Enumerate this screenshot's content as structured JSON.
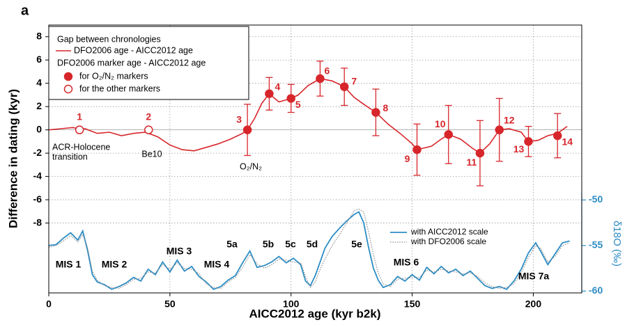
{
  "chart_data": {
    "type": "line",
    "panel_label": "a",
    "xlabel": "AICC2012 age (kyr b2k)",
    "ylabel": "Difference in dating (kyr)",
    "y2label": "δ18O (‰)",
    "xlim": [
      0,
      220
    ],
    "xticks": [
      0,
      50,
      100,
      150,
      200
    ],
    "ylim": [
      -14,
      9
    ],
    "yticks": [
      -8,
      -6,
      -4,
      -2,
      0,
      2,
      4,
      6,
      8
    ],
    "y2lim": [
      -60.2,
      -30.8
    ],
    "y2ticks": [
      -50,
      -55,
      -60
    ],
    "grid": true,
    "legend": "upper left",
    "legend_titles": [
      "Gap between chronologies",
      "DFO2006 marker age - AICC2012 age"
    ],
    "series": [
      {
        "name": "DFO2006 age - AICC2012 age",
        "color": "#d7262b",
        "x": [
          0,
          5,
          10,
          13,
          15,
          20,
          25,
          30,
          35,
          40,
          45,
          50,
          55,
          60,
          65,
          70,
          75,
          80,
          82,
          85,
          88,
          91,
          95,
          100,
          103,
          107,
          112,
          117,
          122,
          126,
          130,
          135,
          140,
          145,
          150,
          152,
          158,
          162,
          165,
          170,
          175,
          178,
          182,
          186,
          190,
          195,
          198,
          202,
          206,
          210,
          214
        ],
        "values": [
          0,
          0.1,
          0.2,
          0.05,
          0.1,
          -0.3,
          -0.2,
          -0.5,
          -0.3,
          -0.2,
          -0.6,
          -1.3,
          -1.7,
          -1.8,
          -1.5,
          -1.2,
          -0.8,
          -0.3,
          0,
          1.0,
          2.3,
          3.1,
          2.4,
          2.7,
          3.0,
          3.8,
          4.4,
          4.2,
          3.7,
          2.8,
          2.2,
          1.5,
          0.5,
          -0.3,
          -1.2,
          -1.7,
          -1.4,
          -0.8,
          -0.4,
          -0.8,
          -1.6,
          -2.0,
          -1.2,
          0,
          0.1,
          -0.2,
          -1.0,
          -0.9,
          -0.5,
          -0.3,
          0.3
        ]
      },
      {
        "name": "for O₂/N₂ markers",
        "color": "#d7262b",
        "marker": "filled",
        "x": [
          82,
          91,
          100,
          112,
          122,
          135,
          152,
          165,
          178,
          186,
          198,
          210
        ],
        "values": [
          0,
          3.1,
          2.7,
          4.4,
          3.7,
          1.5,
          -1.7,
          -0.4,
          -2.0,
          0,
          -1.0,
          -0.5
        ],
        "errors": [
          2.2,
          1.4,
          1.2,
          1.5,
          1.6,
          2.0,
          2.2,
          2.5,
          2.8,
          2.7,
          1.3,
          1.9
        ],
        "labels": [
          "3",
          "4",
          "5",
          "6",
          "7",
          "8",
          "9",
          "10",
          "11",
          "12",
          "13",
          "14"
        ]
      },
      {
        "name": "for the other markers",
        "color": "#d7262b",
        "marker": "open",
        "x": [
          12.7,
          41.2
        ],
        "values": [
          0,
          0
        ],
        "labels": [
          "1",
          "2"
        ]
      },
      {
        "name": "with AICC2012 scale",
        "color": "#2b8cc4",
        "axis": "y2",
        "x": [
          0,
          3,
          6,
          9,
          12,
          14,
          16,
          18,
          20,
          23,
          26,
          29,
          32,
          35,
          38,
          41,
          44,
          47,
          50,
          53,
          56,
          59,
          62,
          65,
          68,
          71,
          74,
          77,
          80,
          83,
          86,
          89,
          92,
          95,
          98,
          101,
          104,
          106,
          108,
          110,
          112,
          114,
          117,
          120,
          123,
          126,
          128,
          130,
          132,
          134,
          136,
          138,
          141,
          144,
          147,
          150,
          153,
          156,
          159,
          162,
          165,
          168,
          171,
          174,
          177,
          180,
          183,
          186,
          189,
          192,
          195,
          198,
          201,
          203,
          206,
          209,
          212,
          215
        ],
        "values": [
          -55,
          -54.9,
          -54.2,
          -53.6,
          -54.4,
          -53.4,
          -55.5,
          -58.2,
          -59,
          -59.3,
          -59.8,
          -59.5,
          -59.1,
          -58.5,
          -58.9,
          -57.6,
          -58.2,
          -56.8,
          -57.9,
          -56.6,
          -57.8,
          -57.3,
          -58.4,
          -59,
          -59.8,
          -59.5,
          -58.8,
          -58.3,
          -56.9,
          -55.6,
          -57.4,
          -57.2,
          -56.8,
          -56.2,
          -56.9,
          -56.4,
          -57.1,
          -58.9,
          -59.4,
          -58.3,
          -56.8,
          -55.3,
          -54,
          -53.1,
          -52.3,
          -51.6,
          -51.3,
          -52.5,
          -55.2,
          -57.5,
          -58.8,
          -59.6,
          -59.3,
          -58.4,
          -58.9,
          -58.2,
          -58.8,
          -57.4,
          -58.1,
          -57.3,
          -58,
          -57.6,
          -58.3,
          -57.8,
          -58.6,
          -59.4,
          -59.7,
          -59.5,
          -59.8,
          -58.9,
          -57.6,
          -55.8,
          -54.7,
          -55.6,
          -57.1,
          -55.9,
          -54.7,
          -54.5
        ]
      },
      {
        "name": "with DFO2006 scale",
        "color": "#8c8c8c",
        "axis": "y2",
        "dash": "dotted",
        "x": [
          0,
          3,
          6,
          9,
          12,
          14,
          16,
          18,
          20,
          23,
          26,
          29,
          32,
          35,
          38,
          41,
          44,
          47,
          50,
          53,
          56,
          59,
          62,
          65,
          68,
          71,
          74,
          77,
          80,
          83,
          86,
          89,
          92,
          95,
          98,
          101,
          104,
          106,
          108,
          110,
          112,
          114,
          117,
          120,
          123,
          126,
          128,
          130,
          132,
          134,
          136,
          138,
          141,
          144,
          147,
          150,
          153,
          156,
          159,
          162,
          165,
          168,
          171,
          174,
          177,
          180,
          183,
          186,
          189,
          192,
          195,
          198,
          201,
          203,
          206,
          209,
          212,
          215
        ],
        "values": [
          -55.2,
          -55,
          -54.5,
          -53.9,
          -54.6,
          -53.8,
          -55.2,
          -57.8,
          -58.8,
          -59.4,
          -59.6,
          -59.7,
          -59.3,
          -58.7,
          -58.6,
          -57.9,
          -58,
          -57.1,
          -57.6,
          -56.9,
          -57.5,
          -57.6,
          -58.1,
          -59.2,
          -59.6,
          -59.7,
          -59,
          -58.5,
          -57.4,
          -56,
          -57,
          -57.5,
          -57.1,
          -56.5,
          -56.6,
          -56.8,
          -56.9,
          -58.4,
          -59.6,
          -59,
          -57.6,
          -56.5,
          -55,
          -53.8,
          -52.5,
          -51.2,
          -51,
          -51.3,
          -53.5,
          -56,
          -58,
          -59.2,
          -59.5,
          -58.7,
          -58.6,
          -58.5,
          -58.5,
          -57.7,
          -57.9,
          -57.6,
          -57.8,
          -57.9,
          -58.1,
          -58,
          -58.4,
          -59.1,
          -59.5,
          -59.7,
          -59.6,
          -59.2,
          -58,
          -56.3,
          -55,
          -55.3,
          -56.8,
          -56.2,
          -55,
          -54.7
        ]
      }
    ],
    "annotations": [
      "ACR-Holocene",
      "transition",
      "Be10",
      "O₂/N₂"
    ],
    "mis_labels": [
      "MIS 1",
      "MIS 2",
      "MIS 3",
      "MIS 4",
      "5a",
      "5b",
      "5c",
      "5d",
      "5e",
      "MIS 6",
      "MIS 7a"
    ]
  }
}
